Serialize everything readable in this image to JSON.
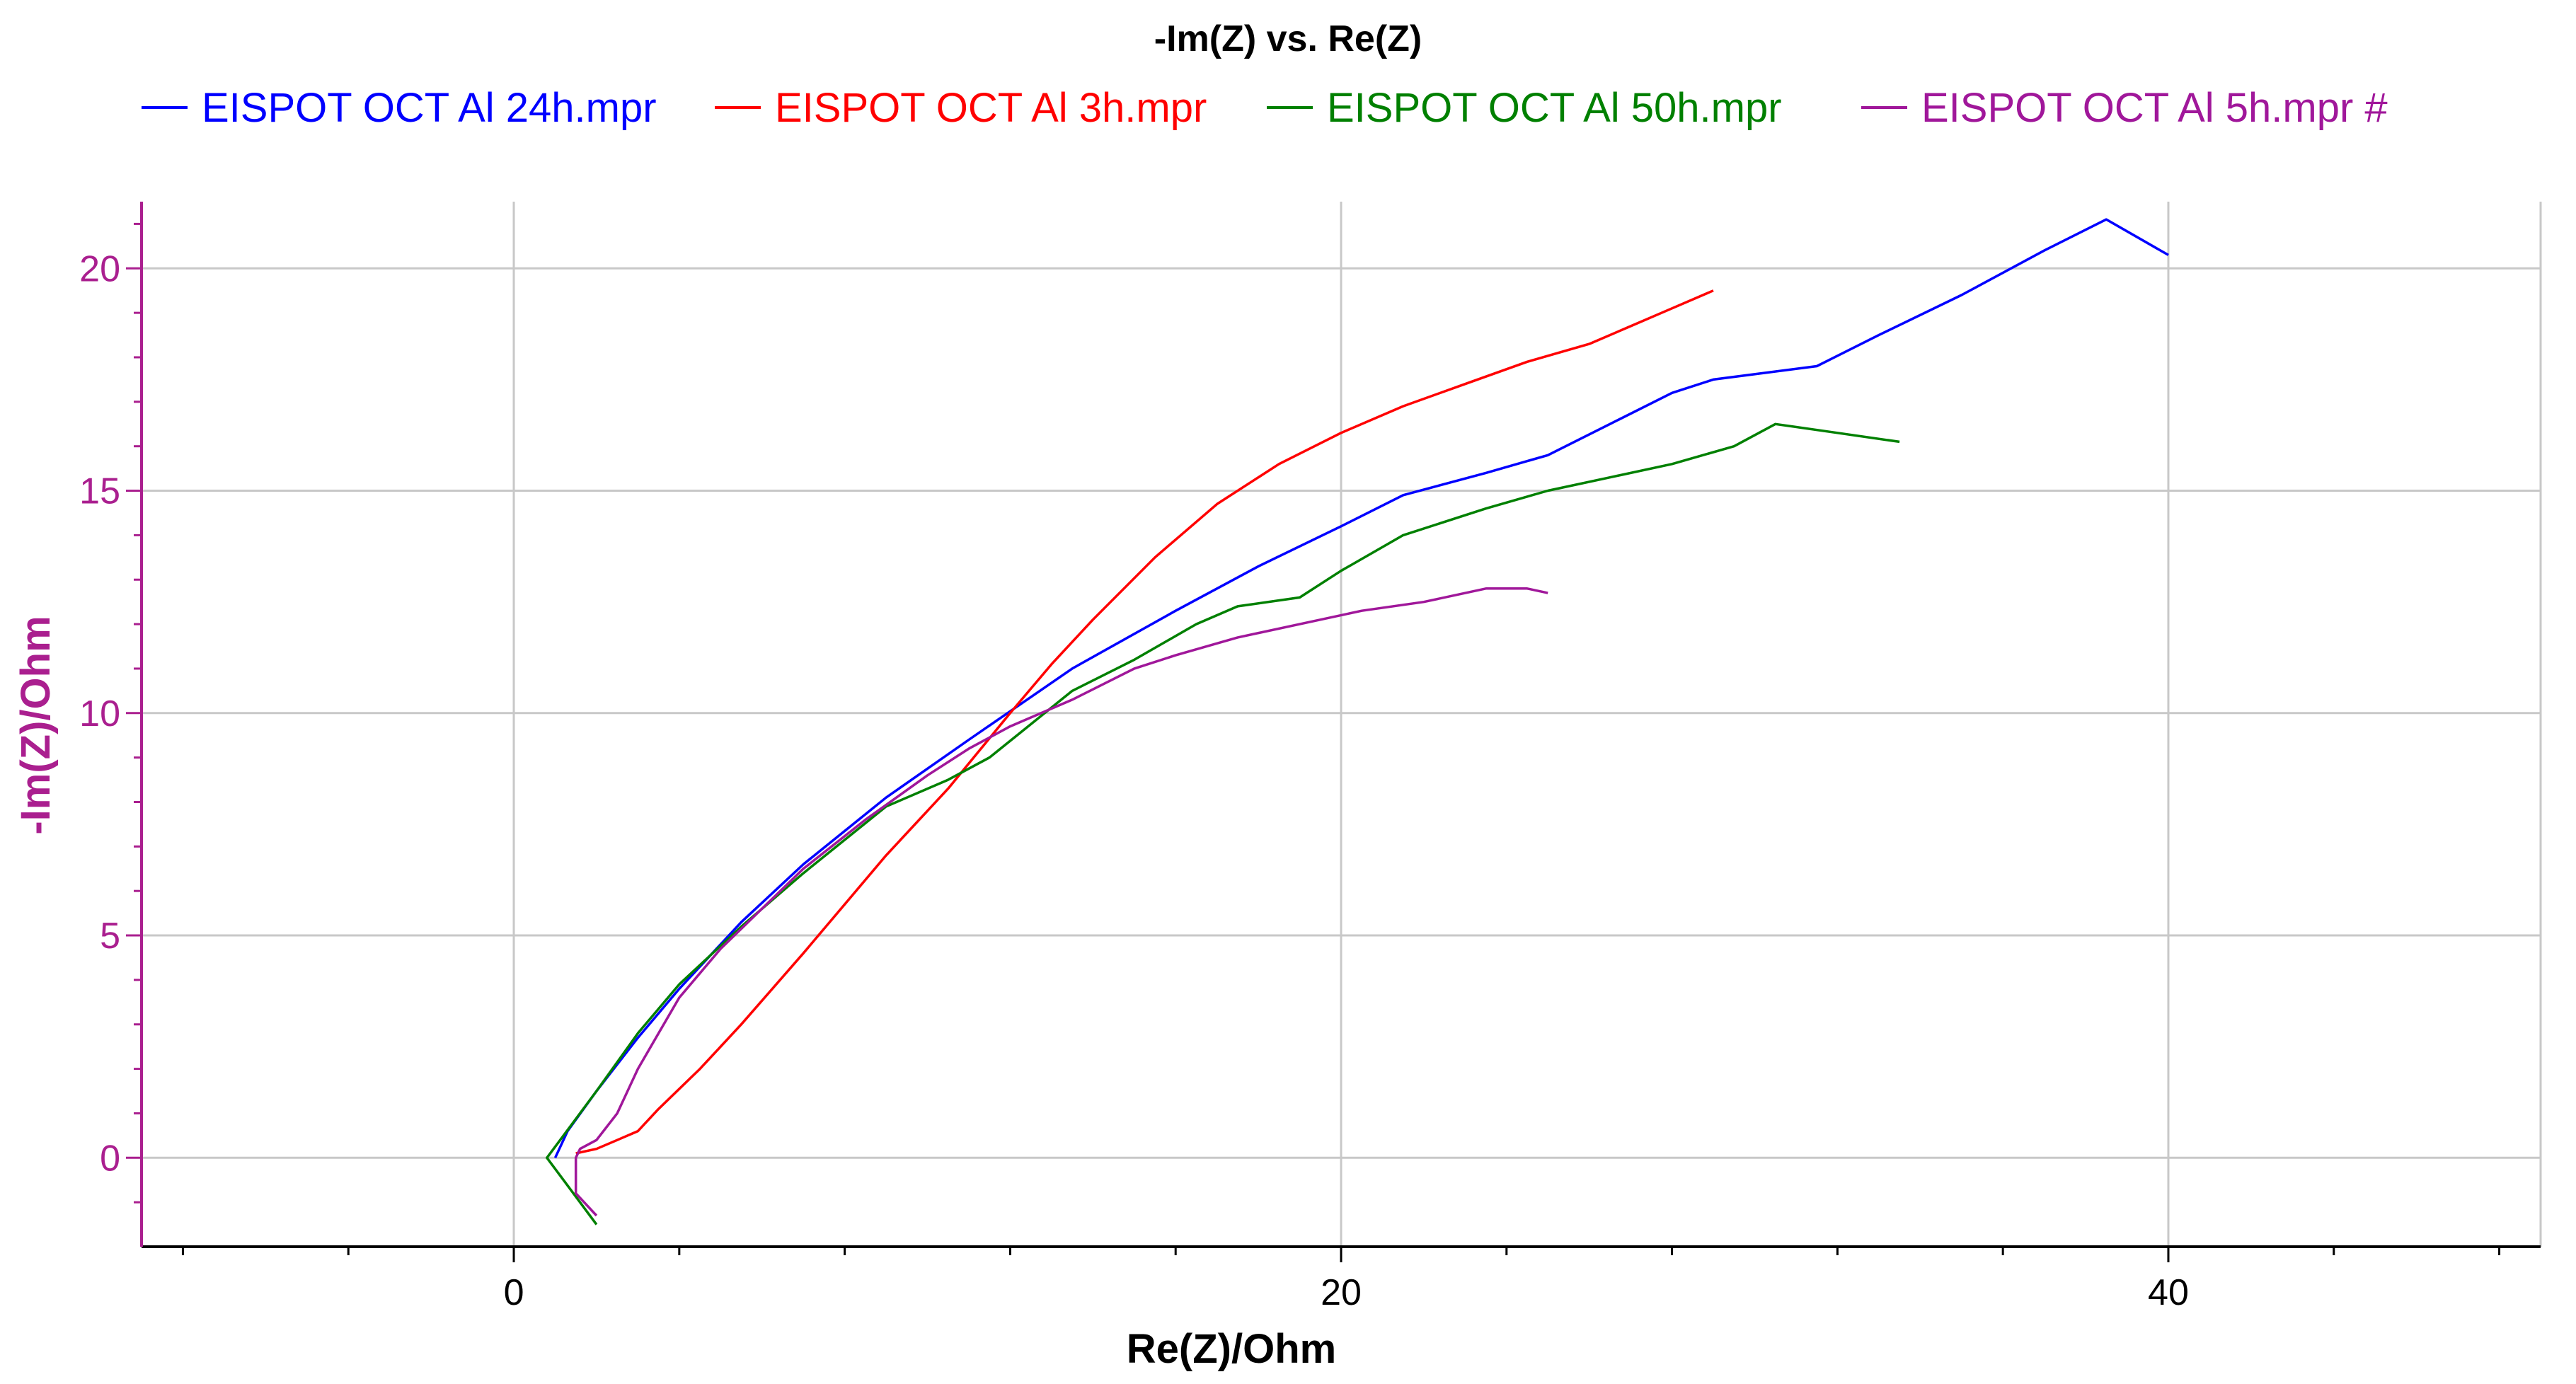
{
  "chart_data": {
    "type": "line",
    "title": "-Im(Z) vs. Re(Z)",
    "xlabel": "Re(Z)/Ohm",
    "ylabel": "-Im(Z)/Ohm",
    "xlim": [
      -9,
      49
    ],
    "ylim": [
      -2,
      21.5
    ],
    "x_ticks": [
      0,
      20,
      40
    ],
    "y_ticks": [
      0,
      5,
      10,
      15,
      20
    ],
    "x_tick_labels": [
      "0",
      "20",
      "40"
    ],
    "y_tick_labels": [
      "0",
      "5",
      "10",
      "15",
      "20"
    ],
    "grid": true,
    "legend_position": "top",
    "colors": {
      "axis": "#aa1f8f",
      "grid": "#c8c8c8",
      "text": "#000000"
    },
    "series": [
      {
        "name": "EISPOT OCT Al 24h.mpr",
        "color": "#0000ff",
        "points": [
          [
            1.0,
            0.0
          ],
          [
            1.3,
            0.6
          ],
          [
            2.0,
            1.5
          ],
          [
            3.0,
            2.7
          ],
          [
            4.0,
            3.8
          ],
          [
            5.5,
            5.3
          ],
          [
            7.0,
            6.6
          ],
          [
            9.0,
            8.1
          ],
          [
            11.0,
            9.4
          ],
          [
            13.5,
            11.0
          ],
          [
            16.0,
            12.3
          ],
          [
            18.0,
            13.3
          ],
          [
            20.0,
            14.2
          ],
          [
            21.5,
            14.9
          ],
          [
            23.5,
            15.4
          ],
          [
            25.0,
            15.8
          ],
          [
            26.5,
            16.5
          ],
          [
            28.0,
            17.2
          ],
          [
            29.0,
            17.5
          ],
          [
            31.5,
            17.8
          ],
          [
            33.0,
            18.5
          ],
          [
            35.0,
            19.4
          ],
          [
            37.0,
            20.4
          ],
          [
            38.5,
            21.1
          ],
          [
            40.0,
            20.3
          ]
        ]
      },
      {
        "name": "EISPOT OCT Al 3h.mpr",
        "color": "#ff0000",
        "points": [
          [
            1.5,
            0.1
          ],
          [
            2.0,
            0.2
          ],
          [
            2.5,
            0.4
          ],
          [
            3.0,
            0.6
          ],
          [
            3.5,
            1.1
          ],
          [
            4.5,
            2.0
          ],
          [
            5.5,
            3.0
          ],
          [
            7.0,
            4.6
          ],
          [
            9.0,
            6.8
          ],
          [
            10.5,
            8.3
          ],
          [
            12.0,
            10.0
          ],
          [
            13.0,
            11.1
          ],
          [
            14.0,
            12.1
          ],
          [
            15.5,
            13.5
          ],
          [
            17.0,
            14.7
          ],
          [
            18.5,
            15.6
          ],
          [
            20.0,
            16.3
          ],
          [
            21.5,
            16.9
          ],
          [
            23.0,
            17.4
          ],
          [
            24.5,
            17.9
          ],
          [
            26.0,
            18.3
          ],
          [
            27.0,
            18.7
          ],
          [
            28.0,
            19.1
          ],
          [
            29.0,
            19.5
          ]
        ]
      },
      {
        "name": "EISPOT OCT Al 50h.mpr",
        "color": "#008000",
        "points": [
          [
            2.0,
            -1.5
          ],
          [
            1.2,
            -0.5
          ],
          [
            0.8,
            0.0
          ],
          [
            1.2,
            0.5
          ],
          [
            2.0,
            1.5
          ],
          [
            3.0,
            2.8
          ],
          [
            4.0,
            3.9
          ],
          [
            5.5,
            5.2
          ],
          [
            7.0,
            6.4
          ],
          [
            9.0,
            7.9
          ],
          [
            10.5,
            8.5
          ],
          [
            11.5,
            9.0
          ],
          [
            13.5,
            10.5
          ],
          [
            15.0,
            11.2
          ],
          [
            16.5,
            12.0
          ],
          [
            17.5,
            12.4
          ],
          [
            19.0,
            12.6
          ],
          [
            20.0,
            13.2
          ],
          [
            21.5,
            14.0
          ],
          [
            23.5,
            14.6
          ],
          [
            25.0,
            15.0
          ],
          [
            26.5,
            15.3
          ],
          [
            28.0,
            15.6
          ],
          [
            29.5,
            16.0
          ],
          [
            30.5,
            16.5
          ],
          [
            32.0,
            16.3
          ],
          [
            33.5,
            16.1
          ]
        ]
      },
      {
        "name": "EISPOT OCT Al 5h.mpr #",
        "color": "#a0179a",
        "points": [
          [
            2.0,
            -1.3
          ],
          [
            1.5,
            -0.8
          ],
          [
            1.5,
            -0.3
          ],
          [
            1.5,
            0.0
          ],
          [
            1.6,
            0.2
          ],
          [
            2.0,
            0.4
          ],
          [
            2.5,
            1.0
          ],
          [
            3.0,
            2.0
          ],
          [
            3.5,
            2.8
          ],
          [
            4.0,
            3.6
          ],
          [
            5.0,
            4.7
          ],
          [
            6.0,
            5.6
          ],
          [
            7.0,
            6.5
          ],
          [
            8.5,
            7.6
          ],
          [
            10.0,
            8.6
          ],
          [
            11.0,
            9.2
          ],
          [
            12.0,
            9.7
          ],
          [
            13.5,
            10.3
          ],
          [
            15.0,
            11.0
          ],
          [
            16.0,
            11.3
          ],
          [
            17.5,
            11.7
          ],
          [
            19.0,
            12.0
          ],
          [
            20.5,
            12.3
          ],
          [
            22.0,
            12.5
          ],
          [
            23.5,
            12.8
          ],
          [
            24.5,
            12.8
          ],
          [
            25.0,
            12.7
          ]
        ]
      }
    ]
  }
}
